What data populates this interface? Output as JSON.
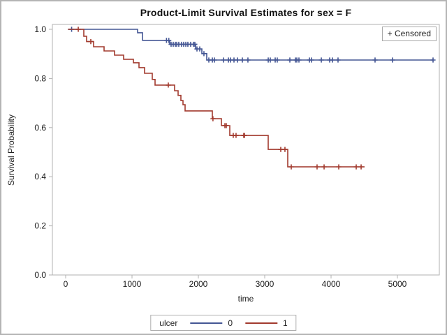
{
  "title": "Product-Limit Survival Estimates for sex = F",
  "censored_note": "+ Censored",
  "legend": {
    "title": "ulcer",
    "entries": [
      {
        "label": "0",
        "color": "#445694"
      },
      {
        "label": "1",
        "color": "#A23A2E"
      }
    ]
  },
  "colors": {
    "group0": "#445694",
    "group1": "#A23A2E",
    "frame": "#b2b2b2",
    "tick_text": "#1a1a1a"
  },
  "chart_data": {
    "type": "line",
    "subtype": "kaplan-meier-step",
    "title": "Product-Limit Survival Estimates for sex = F",
    "xlabel": "time",
    "ylabel": "Survival Probability",
    "xlim": [
      0,
      5650
    ],
    "ylim": [
      0.0,
      1.0
    ],
    "x_ticks": [
      0,
      1000,
      2000,
      3000,
      4000,
      5000
    ],
    "y_ticks": [
      0.0,
      0.2,
      0.4,
      0.6,
      0.8,
      1.0
    ],
    "grid": false,
    "legend_position": "bottom",
    "annotations": [
      "+ Censored"
    ],
    "series": [
      {
        "name": "0",
        "color": "#445694",
        "t_start": 35,
        "p_start": 1.0,
        "t_end": 5537,
        "drops": [
          [
            1084,
            0.986
          ],
          [
            1158,
            0.955
          ],
          [
            1568,
            0.939
          ],
          [
            1958,
            0.92
          ],
          [
            2053,
            0.901
          ],
          [
            2126,
            0.875
          ]
        ],
        "censored": [
          [
            90,
            1.0
          ],
          [
            1520,
            0.955
          ],
          [
            1555,
            0.955
          ],
          [
            1589,
            0.939
          ],
          [
            1621,
            0.939
          ],
          [
            1653,
            0.939
          ],
          [
            1674,
            0.939
          ],
          [
            1705,
            0.939
          ],
          [
            1747,
            0.939
          ],
          [
            1779,
            0.939
          ],
          [
            1811,
            0.939
          ],
          [
            1842,
            0.939
          ],
          [
            1884,
            0.939
          ],
          [
            1926,
            0.939
          ],
          [
            1947,
            0.939
          ],
          [
            1979,
            0.92
          ],
          [
            2021,
            0.92
          ],
          [
            2084,
            0.901
          ],
          [
            2158,
            0.875
          ],
          [
            2211,
            0.875
          ],
          [
            2242,
            0.875
          ],
          [
            2379,
            0.875
          ],
          [
            2453,
            0.875
          ],
          [
            2484,
            0.875
          ],
          [
            2537,
            0.875
          ],
          [
            2589,
            0.875
          ],
          [
            2663,
            0.875
          ],
          [
            2747,
            0.875
          ],
          [
            3053,
            0.875
          ],
          [
            3084,
            0.875
          ],
          [
            3158,
            0.875
          ],
          [
            3189,
            0.875
          ],
          [
            3379,
            0.875
          ],
          [
            3463,
            0.875
          ],
          [
            3484,
            0.875
          ],
          [
            3516,
            0.875
          ],
          [
            3674,
            0.875
          ],
          [
            3705,
            0.875
          ],
          [
            3853,
            0.875
          ],
          [
            3979,
            0.875
          ],
          [
            4021,
            0.875
          ],
          [
            4105,
            0.875
          ],
          [
            4663,
            0.875
          ],
          [
            4926,
            0.875
          ],
          [
            5537,
            0.875
          ]
        ]
      },
      {
        "name": "1",
        "color": "#A23A2E",
        "t_start": 35,
        "p_start": 1.0,
        "t_end": 4505,
        "drops": [
          [
            274,
            0.972
          ],
          [
            316,
            0.95
          ],
          [
            421,
            0.929
          ],
          [
            579,
            0.912
          ],
          [
            737,
            0.895
          ],
          [
            874,
            0.878
          ],
          [
            1021,
            0.864
          ],
          [
            1105,
            0.844
          ],
          [
            1189,
            0.821
          ],
          [
            1305,
            0.796
          ],
          [
            1347,
            0.773
          ],
          [
            1642,
            0.75
          ],
          [
            1695,
            0.731
          ],
          [
            1737,
            0.71
          ],
          [
            1768,
            0.693
          ],
          [
            1800,
            0.668
          ],
          [
            2211,
            0.636
          ],
          [
            2347,
            0.608
          ],
          [
            2474,
            0.568
          ],
          [
            3053,
            0.511
          ],
          [
            3347,
            0.44
          ]
        ],
        "censored": [
          [
            190,
            1.0
          ],
          [
            379,
            0.95
          ],
          [
            1547,
            0.773
          ],
          [
            2220,
            0.636
          ],
          [
            2400,
            0.608
          ],
          [
            2421,
            0.608
          ],
          [
            2526,
            0.568
          ],
          [
            2568,
            0.568
          ],
          [
            2684,
            0.568
          ],
          [
            2695,
            0.568
          ],
          [
            3242,
            0.511
          ],
          [
            3305,
            0.511
          ],
          [
            3400,
            0.44
          ],
          [
            3789,
            0.44
          ],
          [
            3895,
            0.44
          ],
          [
            4116,
            0.44
          ],
          [
            4379,
            0.44
          ],
          [
            4453,
            0.44
          ]
        ]
      }
    ]
  }
}
